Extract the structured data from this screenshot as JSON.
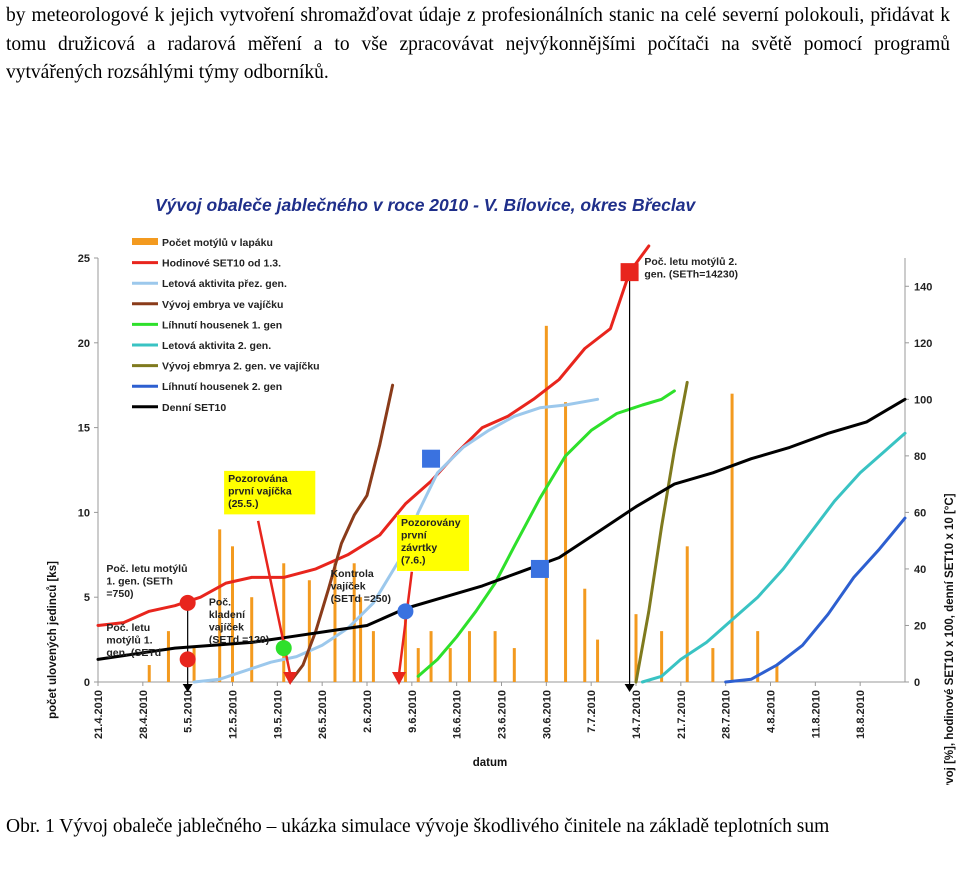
{
  "document": {
    "paragraph": "by meteorologové k jejich vytvoření shromažďovat údaje z profesionálních stanic na celé severní polokouli, přidávat k tomu družicová a radarová měření a to vše zpracovávat nejvýkonnějšími počítači na světě pomocí programů vytvářených rozsáhlými týmy odborníků.",
    "caption": "Obr. 1 Vývoj obaleče jablečného – ukázka simulace vývoje škodlivého činitele na základě teplotních sum"
  },
  "chart_data": {
    "type": "line",
    "title": "Vývoj obaleče jablečného v roce 2010 -  V. Bílovice, okres Břeclav",
    "xlabel": "datum",
    "ylabel_left": "počet ulovených jedinců [ks]",
    "ylabel_right": "vývoj [%], hodinové SET10 x 100, denní SET10 x 10 [°C]",
    "x_ticks": [
      "21.4.2010",
      "28.4.2010",
      "5.5.2010",
      "12.5.2010",
      "19.5.2010",
      "26.5.2010",
      "2.6.2010",
      "9.6.2010",
      "16.6.2010",
      "23.6.2010",
      "30.6.2010",
      "7.7.2010",
      "14.7.2010",
      "21.7.2010",
      "28.7.2010",
      "4.8.2010",
      "11.8.2010",
      "18.8.2010"
    ],
    "x_range": [
      "2010-04-21",
      "2010-08-25"
    ],
    "y_left_range": [
      0,
      25
    ],
    "y_left_ticks": [
      0,
      5,
      10,
      15,
      20,
      25
    ],
    "y_right_range": [
      0,
      150
    ],
    "y_right_ticks": [
      0,
      20,
      40,
      60,
      80,
      100,
      120,
      140
    ],
    "legend": [
      {
        "label": "Počet motýlů v lapáku",
        "color": "#f39a1f",
        "kind": "bar"
      },
      {
        "label": "Hodinové SET10 od 1.3.",
        "color": "#e8251d",
        "kind": "line"
      },
      {
        "label": "Letová aktivita  přez. gen.",
        "color": "#9cc8ec",
        "kind": "line"
      },
      {
        "label": "Vývoj embrya ve vajíčku",
        "color": "#8a3b1a",
        "kind": "line"
      },
      {
        "label": "Líhnutí housenek 1. gen",
        "color": "#2ee02b",
        "kind": "line"
      },
      {
        "label": "Letová aktivita 2. gen.",
        "color": "#39c3c3",
        "kind": "line"
      },
      {
        "label": "Vývoj ebmrya 2. gen. ve vajíčku",
        "color": "#7f7a1e",
        "kind": "line"
      },
      {
        "label": "Líhnutí housenek 2. gen",
        "color": "#2d5fd0",
        "kind": "line"
      },
      {
        "label": "Denní SET10",
        "color": "#000000",
        "kind": "line"
      }
    ],
    "bars": {
      "axis": "left",
      "dates": [
        "2010-04-29",
        "2010-05-02",
        "2010-05-06",
        "2010-05-10",
        "2010-05-12",
        "2010-05-15",
        "2010-05-20",
        "2010-05-24",
        "2010-05-28",
        "2010-05-31",
        "2010-06-01",
        "2010-06-03",
        "2010-06-08",
        "2010-06-10",
        "2010-06-12",
        "2010-06-15",
        "2010-06-18",
        "2010-06-22",
        "2010-06-25",
        "2010-06-30",
        "2010-07-03",
        "2010-07-06",
        "2010-07-08",
        "2010-07-14",
        "2010-07-18",
        "2010-07-22",
        "2010-07-26",
        "2010-07-29",
        "2010-08-02",
        "2010-08-05"
      ],
      "values": [
        1,
        3,
        2,
        9,
        8,
        5,
        7,
        6,
        7,
        7,
        5,
        3,
        4,
        2,
        3,
        2,
        3,
        3,
        2,
        21,
        16.5,
        5.5,
        2.5,
        4,
        3,
        8,
        2,
        17,
        3,
        1
      ]
    },
    "series": [
      {
        "name": "Hodinové SET10 od 1.3.",
        "axis": "right",
        "x": [
          "2010-04-21",
          "2010-04-25",
          "2010-04-29",
          "2010-05-03",
          "2010-05-07",
          "2010-05-11",
          "2010-05-15",
          "2010-05-20",
          "2010-05-25",
          "2010-05-30",
          "2010-06-04",
          "2010-06-08",
          "2010-06-12",
          "2010-06-16",
          "2010-06-20",
          "2010-06-24",
          "2010-06-28",
          "2010-07-02",
          "2010-07-06",
          "2010-07-10",
          "2010-07-13",
          "2010-07-16"
        ],
        "y": [
          20,
          21,
          25,
          27,
          30,
          35,
          37,
          37,
          40,
          45,
          52,
          63,
          71,
          81,
          90,
          94,
          100,
          107,
          118,
          125,
          145,
          155
        ]
      },
      {
        "name": "Letová aktivita  přez. gen.",
        "axis": "right",
        "x": [
          "2010-05-06",
          "2010-05-10",
          "2010-05-14",
          "2010-05-18",
          "2010-05-22",
          "2010-05-26",
          "2010-05-30",
          "2010-06-03",
          "2010-06-07",
          "2010-06-10",
          "2010-06-13",
          "2010-06-17",
          "2010-06-21",
          "2010-06-25",
          "2010-06-29",
          "2010-07-03",
          "2010-07-08"
        ],
        "y": [
          0,
          1,
          4,
          7,
          9,
          13,
          19,
          28,
          43,
          60,
          74,
          83,
          89,
          94,
          97,
          98,
          100
        ]
      },
      {
        "name": "Vývoj embrya ve vajíčku",
        "axis": "right",
        "x": [
          "2010-05-21",
          "2010-05-23",
          "2010-05-25",
          "2010-05-27",
          "2010-05-29",
          "2010-05-31",
          "2010-06-02",
          "2010-06-04",
          "2010-06-06"
        ],
        "y": [
          0,
          6,
          18,
          33,
          49,
          59,
          66,
          84,
          105
        ]
      },
      {
        "name": "Líhnutí housenek 1. gen",
        "axis": "right",
        "x": [
          "2010-06-10",
          "2010-06-13",
          "2010-06-16",
          "2010-06-19",
          "2010-06-22",
          "2010-06-25",
          "2010-06-29",
          "2010-07-03",
          "2010-07-07",
          "2010-07-11",
          "2010-07-15",
          "2010-07-18",
          "2010-07-20"
        ],
        "y": [
          2,
          8,
          16,
          25,
          35,
          48,
          65,
          80,
          89,
          95,
          98,
          100,
          103
        ]
      },
      {
        "name": "Letová aktivita 2. gen.",
        "axis": "right",
        "x": [
          "2010-07-15",
          "2010-07-18",
          "2010-07-21",
          "2010-07-25",
          "2010-07-29",
          "2010-08-02",
          "2010-08-06",
          "2010-08-10",
          "2010-08-14",
          "2010-08-18",
          "2010-08-22",
          "2010-08-25"
        ],
        "y": [
          0,
          2,
          8,
          14,
          22,
          30,
          40,
          52,
          64,
          74,
          82,
          88
        ]
      },
      {
        "name": "Vývoj ebmrya 2. gen. ve vajíčku",
        "axis": "right",
        "x": [
          "2010-07-14",
          "2010-07-16",
          "2010-07-18",
          "2010-07-20",
          "2010-07-22"
        ],
        "y": [
          0,
          25,
          55,
          82,
          106
        ]
      },
      {
        "name": "Líhnutí housenek 2. gen",
        "axis": "right",
        "x": [
          "2010-07-28",
          "2010-08-01",
          "2010-08-05",
          "2010-08-09",
          "2010-08-13",
          "2010-08-17",
          "2010-08-21",
          "2010-08-25"
        ],
        "y": [
          0,
          1,
          6,
          13,
          24,
          37,
          47,
          58
        ]
      },
      {
        "name": "Denní SET10",
        "axis": "right",
        "x": [
          "2010-04-21",
          "2010-04-27",
          "2010-05-03",
          "2010-05-09",
          "2010-05-15",
          "2010-05-21",
          "2010-05-27",
          "2010-06-02",
          "2010-06-08",
          "2010-06-14",
          "2010-06-20",
          "2010-06-26",
          "2010-07-02",
          "2010-07-08",
          "2010-07-14",
          "2010-07-20",
          "2010-07-26",
          "2010-08-01",
          "2010-08-07",
          "2010-08-13",
          "2010-08-19",
          "2010-08-25"
        ],
        "y": [
          8,
          10,
          12,
          13,
          14,
          16,
          18,
          20,
          26,
          30,
          34,
          39,
          44,
          53,
          62,
          70,
          74,
          79,
          83,
          88,
          92,
          100
        ]
      }
    ],
    "markers": [
      {
        "series": "Hodinové SET10 od 1.3.",
        "shape": "circle",
        "color": "#e8251d",
        "date": "2010-05-05",
        "y": 28
      },
      {
        "series": "Hodinové SET10 od 1.3.",
        "shape": "square",
        "color": "#e8251d",
        "date": "2010-07-13",
        "y": 145
      },
      {
        "series": "Letová aktivita  přez. gen.",
        "shape": "square",
        "color": "#3a72e0",
        "date": "2010-06-12",
        "y": 79
      },
      {
        "series": "Vývoj embrya ve vajíčku",
        "shape": "circle",
        "color": "#2ee02b",
        "date": "2010-05-20",
        "y": 12
      },
      {
        "series": "Denní SET10",
        "shape": "circle",
        "color": "#e8251d",
        "date": "2010-05-05",
        "y": 8
      },
      {
        "series": "Denní SET10",
        "shape": "circle",
        "color": "#3a72e0",
        "date": "2010-06-08",
        "y": 25
      },
      {
        "series": "Denní SET10",
        "shape": "square",
        "color": "#3a72e0",
        "date": "2010-06-29",
        "y": 40
      }
    ],
    "annotations": [
      {
        "lines": [
          "Poč. letu motýlů",
          "1. gen. (SETh",
          "=750)"
        ],
        "date": "2010-04-22",
        "y_left": 6.5
      },
      {
        "lines": [
          "Poč. letu",
          "motýlů 1.",
          "gen. (SETd"
        ],
        "date": "2010-04-22",
        "y_left": 3.0
      },
      {
        "lines": [
          "Poč.",
          "kladení",
          "vajíček",
          "(SETd =120)"
        ],
        "date": "2010-05-08",
        "y_left": 4.5
      },
      {
        "lines": [
          "Kontrola",
          "vajíček",
          "(SETd =250)"
        ],
        "date": "2010-05-27",
        "y_left": 6.2
      },
      {
        "lines": [
          "Poč. letu motýlů 2.",
          "gen. (SETh=14230)"
        ],
        "date": "2010-07-15",
        "y_left": 24.6
      },
      {
        "lines": [
          "Pozorována",
          "první vajíčka",
          "(25.5.)"
        ],
        "date": "2010-05-11",
        "y_left": 11.8,
        "box": "#ffff00"
      },
      {
        "lines": [
          "Pozorovány",
          "první",
          "závrtky",
          "(7.6.)"
        ],
        "date": "2010-06-07",
        "y_left": 9.2,
        "box": "#ffff00"
      }
    ],
    "event_lines": [
      {
        "date": "2010-05-05",
        "color": "#000000",
        "from_y_left": 4.6
      },
      {
        "date": "2010-07-13",
        "color": "#000000",
        "from_y_left": 24.5
      }
    ],
    "arrows": [
      {
        "date_from": "2010-05-16",
        "y_from": 9.5,
        "date_to": "2010-05-21",
        "y_to": 0,
        "color": "#e8251d"
      },
      {
        "date_from": "2010-06-09",
        "y_from": 6.5,
        "date_to": "2010-06-07",
        "y_to": 0,
        "color": "#e8251d"
      }
    ]
  }
}
